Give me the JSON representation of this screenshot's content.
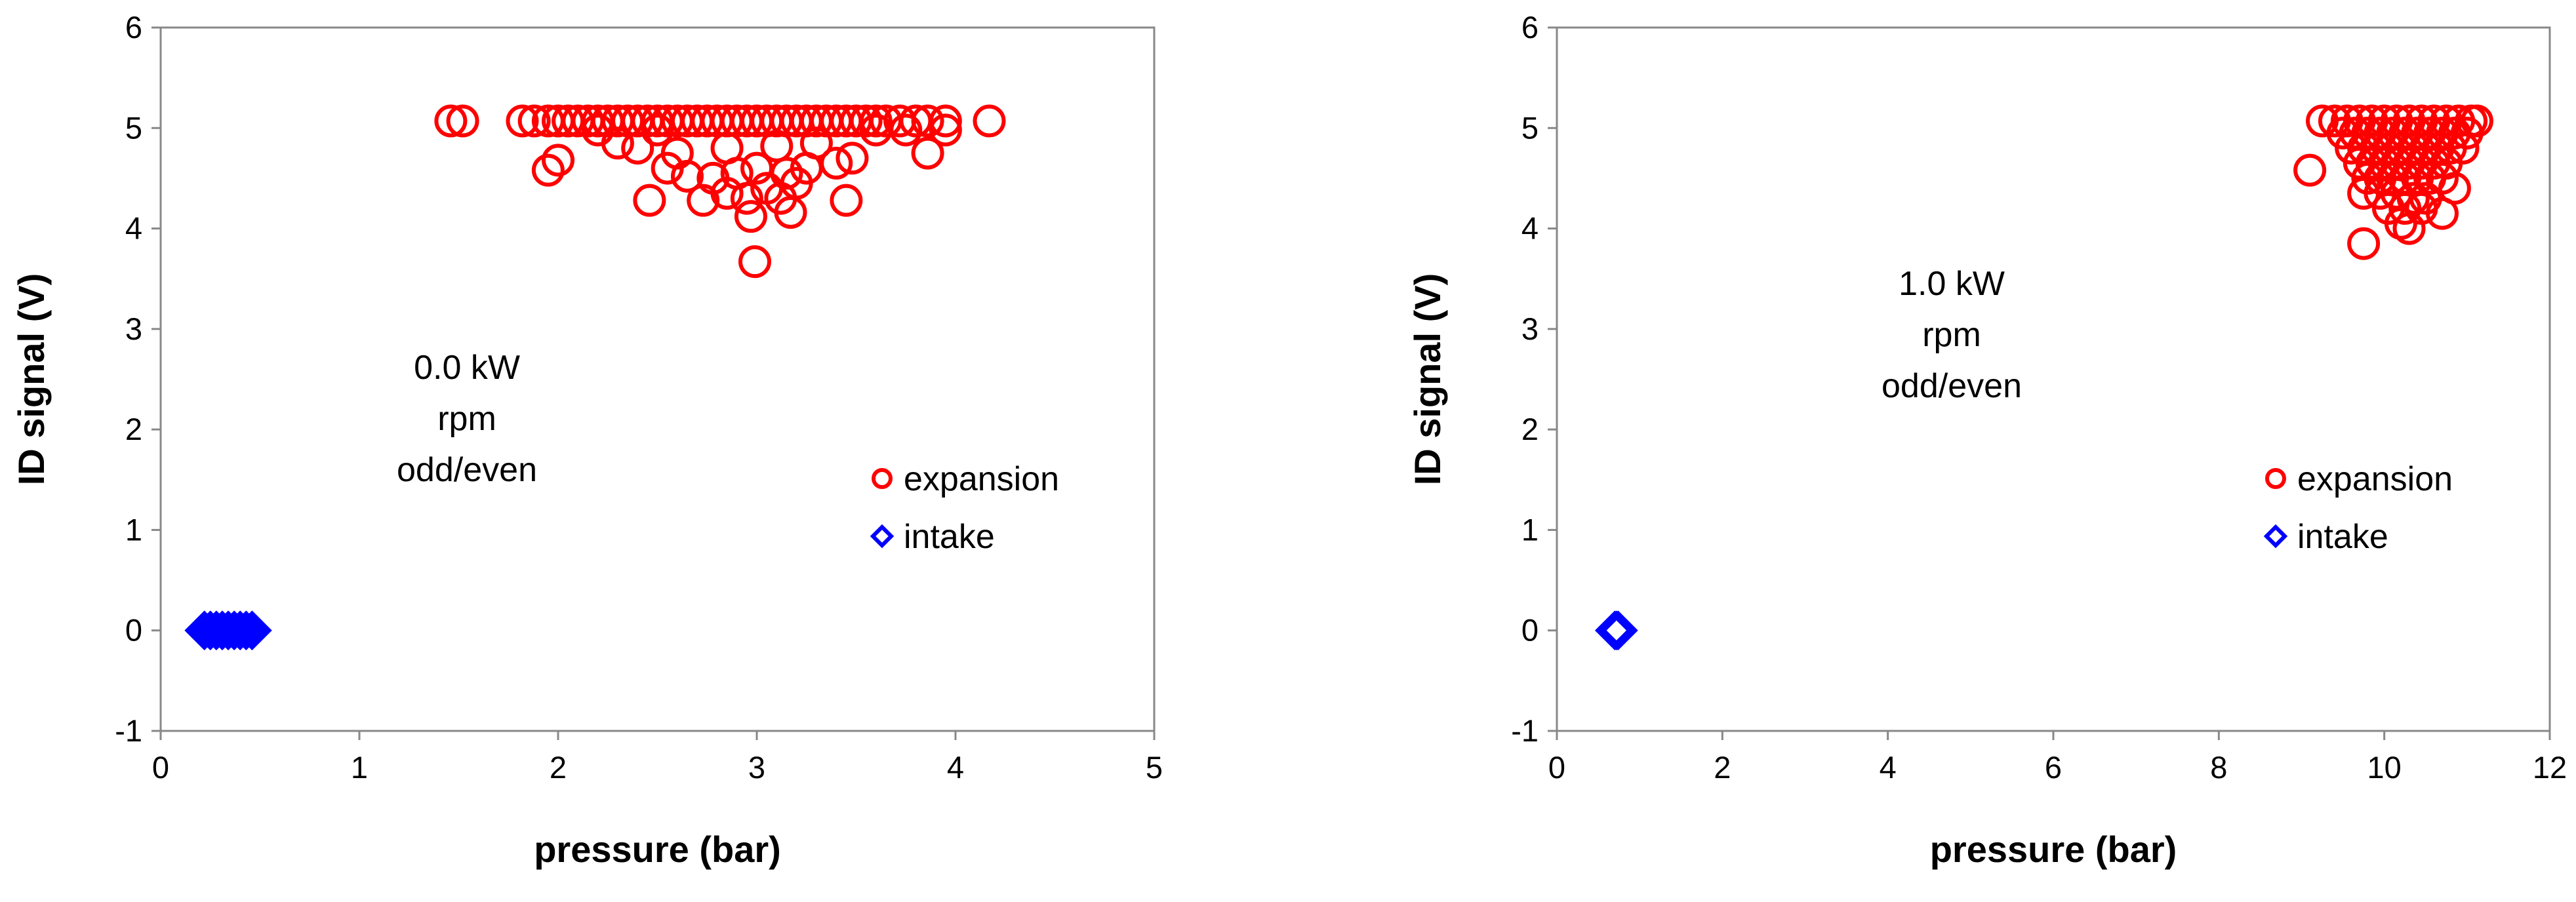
{
  "chart_data": [
    {
      "type": "scatter",
      "title": "",
      "xlabel": "pressure (bar)",
      "ylabel": "ID signal (V)",
      "xlim": [
        0,
        5
      ],
      "ylim": [
        -1,
        6
      ],
      "xticks": [
        0,
        1,
        2,
        3,
        4,
        5
      ],
      "yticks": [
        -1,
        0,
        1,
        2,
        3,
        4,
        5,
        6
      ],
      "grid": false,
      "legend_position": "right-middle",
      "annotation": [
        "0.0 kW",
        "rpm",
        "odd/even"
      ],
      "series": [
        {
          "name": "expansion",
          "marker": "circle-open",
          "color": "#ff0000",
          "points": [
            [
              1.46,
              5.07
            ],
            [
              1.52,
              5.07
            ],
            [
              1.82,
              5.07
            ],
            [
              1.88,
              5.07
            ],
            [
              1.95,
              5.07
            ],
            [
              2.0,
              5.07
            ],
            [
              2.05,
              5.07
            ],
            [
              2.1,
              5.07
            ],
            [
              2.15,
              5.07
            ],
            [
              2.2,
              5.07
            ],
            [
              2.25,
              5.07
            ],
            [
              2.3,
              5.07
            ],
            [
              2.35,
              5.07
            ],
            [
              2.4,
              5.07
            ],
            [
              2.45,
              5.07
            ],
            [
              2.5,
              5.07
            ],
            [
              2.55,
              5.07
            ],
            [
              2.6,
              5.07
            ],
            [
              2.65,
              5.07
            ],
            [
              2.7,
              5.07
            ],
            [
              2.75,
              5.07
            ],
            [
              2.8,
              5.07
            ],
            [
              2.85,
              5.07
            ],
            [
              2.9,
              5.07
            ],
            [
              2.95,
              5.07
            ],
            [
              3.0,
              5.07
            ],
            [
              3.05,
              5.07
            ],
            [
              3.1,
              5.07
            ],
            [
              3.15,
              5.07
            ],
            [
              3.2,
              5.07
            ],
            [
              3.25,
              5.07
            ],
            [
              3.3,
              5.07
            ],
            [
              3.35,
              5.07
            ],
            [
              3.4,
              5.07
            ],
            [
              3.45,
              5.07
            ],
            [
              3.5,
              5.07
            ],
            [
              3.55,
              5.07
            ],
            [
              3.6,
              5.07
            ],
            [
              3.65,
              5.07
            ],
            [
              3.72,
              5.07
            ],
            [
              3.8,
              5.07
            ],
            [
              3.86,
              5.07
            ],
            [
              3.95,
              5.07
            ],
            [
              4.17,
              5.07
            ],
            [
              3.75,
              4.98
            ],
            [
              3.95,
              4.98
            ],
            [
              2.2,
              4.98
            ],
            [
              2.5,
              4.98
            ],
            [
              3.6,
              4.98
            ],
            [
              2.4,
              4.8
            ],
            [
              2.6,
              4.75
            ],
            [
              2.85,
              4.8
            ],
            [
              3.1,
              4.82
            ],
            [
              3.3,
              4.85
            ],
            [
              3.86,
              4.75
            ],
            [
              2.3,
              4.85
            ],
            [
              2.0,
              4.68
            ],
            [
              1.95,
              4.58
            ],
            [
              2.65,
              4.52
            ],
            [
              2.78,
              4.5
            ],
            [
              2.9,
              4.55
            ],
            [
              3.0,
              4.6
            ],
            [
              3.15,
              4.55
            ],
            [
              3.25,
              4.6
            ],
            [
              3.4,
              4.65
            ],
            [
              3.48,
              4.7
            ],
            [
              2.55,
              4.6
            ],
            [
              2.73,
              4.28
            ],
            [
              2.85,
              4.35
            ],
            [
              2.95,
              4.3
            ],
            [
              3.05,
              4.4
            ],
            [
              3.12,
              4.3
            ],
            [
              3.45,
              4.28
            ],
            [
              2.46,
              4.28
            ],
            [
              2.97,
              4.12
            ],
            [
              3.17,
              4.16
            ],
            [
              3.2,
              4.45
            ],
            [
              2.99,
              3.67
            ]
          ]
        },
        {
          "name": "intake",
          "marker": "diamond-open",
          "color": "#0000ff",
          "points": [
            [
              0.22,
              0.0
            ],
            [
              0.25,
              0.0
            ],
            [
              0.28,
              0.0
            ],
            [
              0.31,
              0.0
            ],
            [
              0.34,
              0.0
            ],
            [
              0.37,
              0.0
            ],
            [
              0.4,
              0.0
            ],
            [
              0.43,
              0.0
            ],
            [
              0.46,
              0.0
            ]
          ]
        }
      ]
    },
    {
      "type": "scatter",
      "title": "",
      "xlabel": "pressure (bar)",
      "ylabel": "ID signal (V)",
      "xlim": [
        0,
        12
      ],
      "ylim": [
        -1,
        6
      ],
      "xticks": [
        0,
        2,
        4,
        6,
        8,
        10,
        12
      ],
      "yticks": [
        -1,
        0,
        1,
        2,
        3,
        4,
        5,
        6
      ],
      "grid": false,
      "legend_position": "right-middle",
      "annotation": [
        "1.0 kW",
        "rpm",
        "odd/even"
      ],
      "series": [
        {
          "name": "expansion",
          "marker": "circle-open",
          "color": "#ff0000",
          "points": [
            [
              9.25,
              5.07
            ],
            [
              9.4,
              5.07
            ],
            [
              9.55,
              5.07
            ],
            [
              9.7,
              5.07
            ],
            [
              9.85,
              5.07
            ],
            [
              10.0,
              5.07
            ],
            [
              10.15,
              5.07
            ],
            [
              10.3,
              5.07
            ],
            [
              10.45,
              5.07
            ],
            [
              10.6,
              5.07
            ],
            [
              10.75,
              5.07
            ],
            [
              10.9,
              5.07
            ],
            [
              11.05,
              5.07
            ],
            [
              11.12,
              5.07
            ],
            [
              9.5,
              4.95
            ],
            [
              9.65,
              4.95
            ],
            [
              9.8,
              4.95
            ],
            [
              9.95,
              4.95
            ],
            [
              10.1,
              4.95
            ],
            [
              10.25,
              4.95
            ],
            [
              10.4,
              4.95
            ],
            [
              10.55,
              4.95
            ],
            [
              10.7,
              4.95
            ],
            [
              10.85,
              4.95
            ],
            [
              11.0,
              4.95
            ],
            [
              9.6,
              4.8
            ],
            [
              9.75,
              4.8
            ],
            [
              9.9,
              4.8
            ],
            [
              10.05,
              4.8
            ],
            [
              10.2,
              4.8
            ],
            [
              10.35,
              4.8
            ],
            [
              10.5,
              4.8
            ],
            [
              10.65,
              4.8
            ],
            [
              10.8,
              4.8
            ],
            [
              10.95,
              4.8
            ],
            [
              9.7,
              4.65
            ],
            [
              9.85,
              4.65
            ],
            [
              10.0,
              4.65
            ],
            [
              10.15,
              4.65
            ],
            [
              10.3,
              4.65
            ],
            [
              10.45,
              4.65
            ],
            [
              10.6,
              4.65
            ],
            [
              10.75,
              4.65
            ],
            [
              9.8,
              4.5
            ],
            [
              9.95,
              4.5
            ],
            [
              10.1,
              4.5
            ],
            [
              10.25,
              4.5
            ],
            [
              10.4,
              4.5
            ],
            [
              10.55,
              4.5
            ],
            [
              10.7,
              4.5
            ],
            [
              10.85,
              4.4
            ],
            [
              9.75,
              4.35
            ],
            [
              9.95,
              4.35
            ],
            [
              10.15,
              4.35
            ],
            [
              10.35,
              4.3
            ],
            [
              10.5,
              4.3
            ],
            [
              10.05,
              4.2
            ],
            [
              10.25,
              4.2
            ],
            [
              10.45,
              4.2
            ],
            [
              10.7,
              4.15
            ],
            [
              10.2,
              4.05
            ],
            [
              10.3,
              4.0
            ],
            [
              9.1,
              4.58
            ],
            [
              9.75,
              3.85
            ]
          ]
        },
        {
          "name": "intake",
          "marker": "diamond-open",
          "color": "#0000ff",
          "points": [
            [
              0.7,
              0.0
            ],
            [
              0.72,
              0.0
            ],
            [
              0.74,
              0.0
            ]
          ]
        }
      ]
    }
  ]
}
